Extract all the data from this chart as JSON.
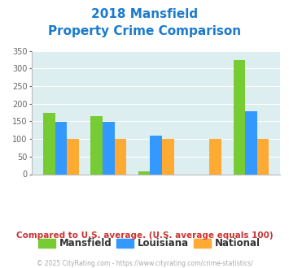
{
  "title_line1": "2018 Mansfield",
  "title_line2": "Property Crime Comparison",
  "mansfield": [
    175,
    165,
    8,
    0,
    325
  ],
  "louisiana": [
    149,
    149,
    110,
    0,
    178
  ],
  "national": [
    100,
    100,
    100,
    100,
    100
  ],
  "mansfield_color": "#77cc33",
  "louisiana_color": "#3399ff",
  "national_color": "#ffaa33",
  "bg_color": "#ddeef0",
  "title_color": "#1a7acc",
  "label_color": "#bb8899",
  "footer_color": "#aaaaaa",
  "note_color": "#cc3333",
  "ylim": [
    0,
    350
  ],
  "yticks": [
    0,
    50,
    100,
    150,
    200,
    250,
    300,
    350
  ],
  "footnote": "Compared to U.S. average. (U.S. average equals 100)",
  "copyright": "© 2025 CityRating.com - https://www.cityrating.com/crime-statistics/",
  "legend_labels": [
    "Mansfield",
    "Louisiana",
    "National"
  ]
}
